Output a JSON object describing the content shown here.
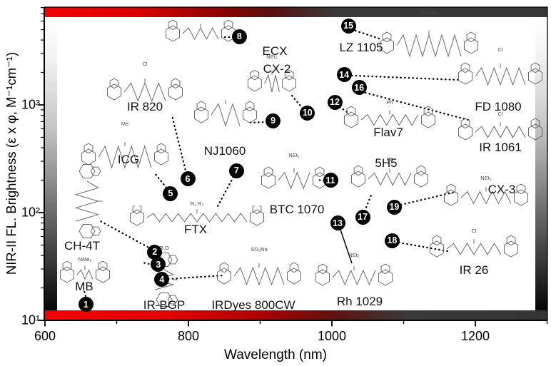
{
  "figure": {
    "x_axis": {
      "label": "Wavelength (nm)",
      "tick_labels": [
        "600",
        "800",
        "1000",
        "1200"
      ],
      "tick_values": [
        600,
        800,
        1000,
        1200
      ],
      "minor_tick_values": [
        700,
        900,
        1100,
        1300
      ]
    },
    "y_axis": {
      "label": "NIR-II FL. Brightness (ε x φ, M⁻¹cm⁻¹)",
      "tick_labels": [
        "10¹",
        "10²",
        "10³"
      ],
      "tick_values": [
        10,
        100,
        1000
      ]
    },
    "colors": {
      "spectrum_red": "#f40000",
      "bar_dark_gray": "#3a3a3a",
      "point_fill": "#000000",
      "point_text": "#ffffff",
      "structure_stroke": "#5a5a5a"
    }
  },
  "chart_data": {
    "type": "scatter",
    "title": "",
    "xlabel": "Wavelength (nm)",
    "ylabel": "NIR-II FL. Brightness (ε x φ, M⁻¹cm⁻¹)",
    "x_scale": "linear",
    "y_scale": "log",
    "xlim": [
      600,
      1300
    ],
    "ylim": [
      10,
      8000
    ],
    "legend": "none",
    "grid": false,
    "points": [
      {
        "n": 1,
        "dye": "MB",
        "wavelength_nm": 657,
        "brightness": 14,
        "substituent": "NMe₂"
      },
      {
        "n": 2,
        "dye": "CH-4T",
        "wavelength_nm": 753,
        "brightness": 43,
        "substituent": ""
      },
      {
        "n": 3,
        "dye": "IR-BGP",
        "wavelength_nm": 758,
        "brightness": 33,
        "substituent": "R₁O"
      },
      {
        "n": 4,
        "dye": "IRDyes 800CW",
        "wavelength_nm": 763,
        "brightness": 24,
        "substituent": "SO₃Na"
      },
      {
        "n": 5,
        "dye": "ICG",
        "wavelength_nm": 775,
        "brightness": 150,
        "substituent": "Me"
      },
      {
        "n": 6,
        "dye": "IR 820",
        "wavelength_nm": 799,
        "brightness": 205,
        "substituent": "Cl"
      },
      {
        "n": 7,
        "dye": "FTX",
        "wavelength_nm": 867,
        "brightness": 245,
        "substituent": "R₁  R₂"
      },
      {
        "n": 8,
        "dye": "ECX",
        "wavelength_nm": 871,
        "brightness": 4300,
        "substituent": ""
      },
      {
        "n": 9,
        "dye": "NJ1060",
        "wavelength_nm": 918,
        "brightness": 715,
        "substituent": ""
      },
      {
        "n": 10,
        "dye": "CX-2",
        "wavelength_nm": 966,
        "brightness": 845,
        "substituent": "NEt₂"
      },
      {
        "n": 11,
        "dye": "BTC 1070",
        "wavelength_nm": 998,
        "brightness": 200,
        "substituent": "NEt₂"
      },
      {
        "n": 12,
        "dye": "Flav7",
        "wavelength_nm": 1004,
        "brightness": 1060,
        "substituent": "Ph"
      },
      {
        "n": 13,
        "dye": "Rh 1029",
        "wavelength_nm": 1008,
        "brightness": 80,
        "substituent": "NEt₂"
      },
      {
        "n": 14,
        "dye": "FD 1080",
        "wavelength_nm": 1017,
        "brightness": 1900,
        "substituent": "Cl"
      },
      {
        "n": 15,
        "dye": "LZ 1105",
        "wavelength_nm": 1023,
        "brightness": 5400,
        "substituent": "SO₃Na"
      },
      {
        "n": 16,
        "dye": "IR 1061",
        "wavelength_nm": 1038,
        "brightness": 1450,
        "substituent": "Cl"
      },
      {
        "n": 17,
        "dye": "5H5",
        "wavelength_nm": 1043,
        "brightness": 91,
        "substituent": "Ph"
      },
      {
        "n": 18,
        "dye": "IR 26",
        "wavelength_nm": 1084,
        "brightness": 55,
        "substituent": "Cl"
      },
      {
        "n": 19,
        "dye": "CX-3",
        "wavelength_nm": 1087,
        "brightness": 113,
        "substituent": "NEt₂"
      }
    ]
  }
}
